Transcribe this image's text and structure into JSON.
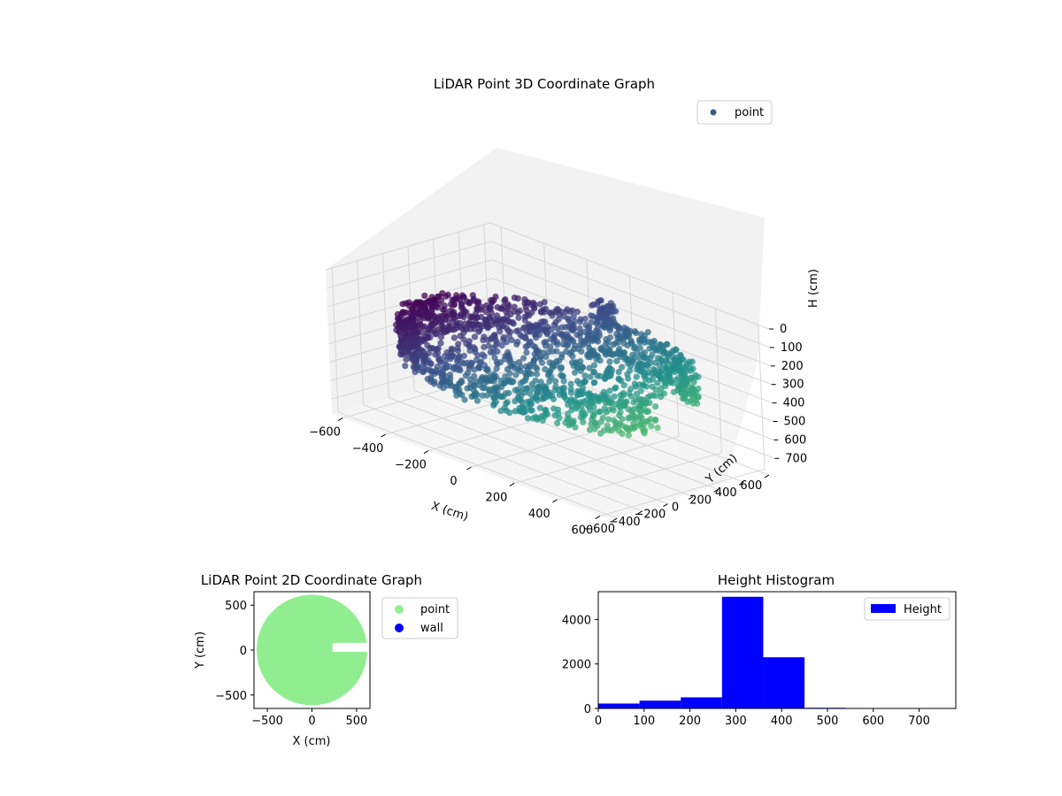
{
  "chart_data": [
    {
      "type": "scatter3d",
      "title": "LiDAR Point 3D Coordinate Graph",
      "xlabel": "X (cm)",
      "ylabel": "Y (cm)",
      "zlabel": "H (cm)",
      "xlim": [
        -650,
        650
      ],
      "ylim": [
        -650,
        650
      ],
      "zlim": [
        0,
        780
      ],
      "z_inverted": true,
      "xticks": [
        "−600",
        "−400",
        "−200",
        "0",
        "200",
        "400",
        "600"
      ],
      "yticks": [
        "−600",
        "−400",
        "−200",
        "0",
        "200",
        "400",
        "600"
      ],
      "zticks": [
        "0",
        "100",
        "200",
        "300",
        "400",
        "500",
        "600",
        "700"
      ],
      "legend": {
        "placement": "top-right",
        "entries": [
          {
            "label": "point",
            "color": "#3b5b8c"
          }
        ]
      },
      "colormap": "viridis",
      "grid": true,
      "series": [
        {
          "name": "point",
          "shape": "ring",
          "radius_cm": [
            540,
            620
          ],
          "height_cm": [
            250,
            450
          ],
          "gap_angle_deg": [
            -15,
            40
          ],
          "opening": "right"
        }
      ]
    },
    {
      "type": "scatter",
      "title": "LiDAR Point 2D Coordinate Graph",
      "xlabel": "X (cm)",
      "ylabel": "Y (cm)",
      "xlim": [
        -650,
        650
      ],
      "ylim": [
        -650,
        650
      ],
      "xticks": [
        "−500",
        "0",
        "500"
      ],
      "yticks": [
        "−500",
        "0",
        "500"
      ],
      "legend": {
        "placement": "outside-right",
        "entries": [
          {
            "label": "point",
            "color": "#90ee90"
          },
          {
            "label": "wall",
            "color": "#0000ff"
          }
        ]
      },
      "series": [
        {
          "name": "point",
          "color": "#90ee90",
          "shape": "filled-disk",
          "radius_cm": 620,
          "gap_y_cm": [
            -20,
            80
          ]
        },
        {
          "name": "wall",
          "color": "#0000ff",
          "values": []
        }
      ]
    },
    {
      "type": "bar",
      "title": "Height Histogram",
      "xlabel": "",
      "ylabel": "",
      "xlim": [
        0,
        780
      ],
      "ylim": [
        0,
        5250
      ],
      "xticks": [
        "0",
        "100",
        "200",
        "300",
        "400",
        "500",
        "600",
        "700"
      ],
      "yticks": [
        "0",
        "2000",
        "4000"
      ],
      "legend": {
        "placement": "top-right",
        "entries": [
          {
            "label": "Height",
            "color": "#0000ff"
          }
        ]
      },
      "series": [
        {
          "name": "Height",
          "color": "#0000ff",
          "bins": [
            [
              0,
              90
            ],
            [
              90,
              180
            ],
            [
              180,
              270
            ],
            [
              270,
              360
            ],
            [
              360,
              450
            ],
            [
              450,
              540
            ],
            [
              540,
              630
            ],
            [
              630,
              720
            ]
          ],
          "values": [
            220,
            350,
            500,
            5020,
            2300,
            30,
            5,
            3
          ]
        }
      ]
    }
  ]
}
